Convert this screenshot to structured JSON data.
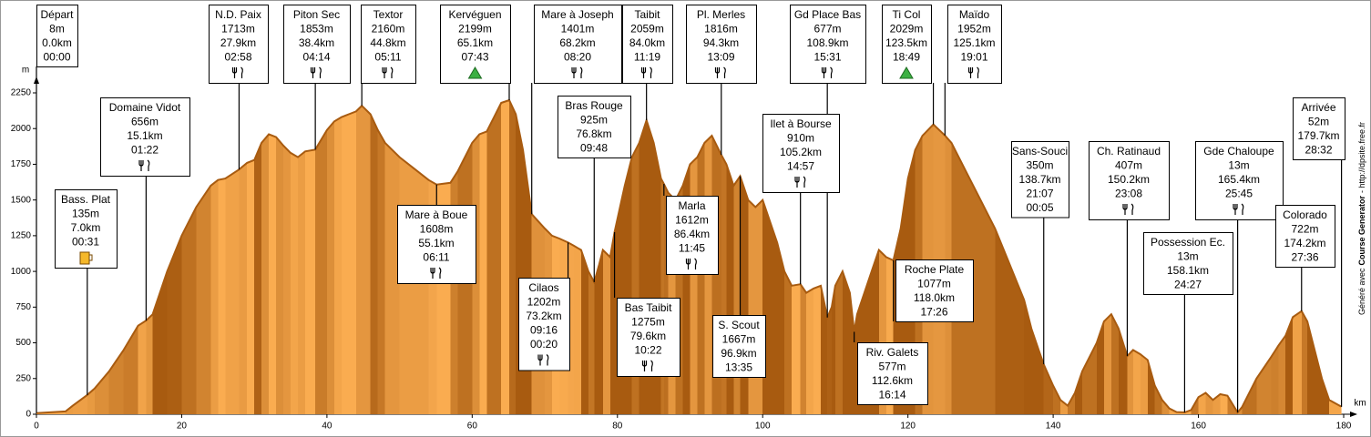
{
  "chart_data": {
    "type": "area",
    "ylabel": "m",
    "xlabel": "km",
    "credit": [
      "Généré avec",
      "Course Generator",
      "- http://dpsite.free.fr"
    ],
    "xlim": [
      0,
      180
    ],
    "xticks": [
      0,
      20,
      40,
      60,
      80,
      100,
      120,
      140,
      160,
      180
    ],
    "ylim": [
      0,
      2250
    ],
    "yticks": [
      0,
      250,
      500,
      750,
      1000,
      1250,
      1500,
      1750,
      2000,
      2250
    ],
    "color": "#a85b10",
    "x": [
      0,
      4,
      5,
      7,
      8,
      10,
      12,
      14,
      15.1,
      16,
      18,
      20,
      22,
      24,
      25,
      26,
      27.9,
      29,
      30,
      31,
      32,
      33,
      34,
      35,
      36,
      37,
      38.4,
      40,
      41,
      42,
      43,
      44,
      44.8,
      46,
      47,
      48,
      50,
      52,
      54,
      55.1,
      57,
      58,
      60,
      61,
      62,
      63,
      64,
      65.1,
      66,
      67,
      68.2,
      70,
      71,
      72,
      73.2,
      74,
      75,
      76,
      76.8,
      77.5,
      78,
      79,
      79.6,
      81,
      82,
      83,
      84,
      85,
      86,
      86.4,
      87,
      88,
      89,
      90,
      91,
      92,
      93,
      94.3,
      95,
      96,
      96.9,
      98,
      99,
      100,
      101,
      102,
      103,
      104,
      105.2,
      106,
      107,
      108,
      108.9,
      109.5,
      110,
      111,
      112,
      112.6,
      113,
      115,
      116,
      117,
      118,
      119,
      120,
      121,
      122,
      123.5,
      125.1,
      126,
      128,
      130,
      132,
      134,
      136,
      137,
      138,
      138.7,
      140,
      141,
      142,
      143,
      144,
      146,
      147,
      148,
      149,
      150.2,
      151,
      152,
      153,
      154,
      155,
      156,
      157,
      158.1,
      159,
      160,
      161,
      162,
      163,
      164,
      165.4,
      166,
      168,
      170,
      171,
      172,
      173,
      174.2,
      175,
      176,
      177,
      178,
      179.7
    ],
    "series": [
      {
        "name": "profile",
        "values": [
          8,
          20,
          60,
          135,
          180,
          300,
          450,
          620,
          656,
          700,
          1000,
          1250,
          1450,
          1600,
          1640,
          1650,
          1713,
          1760,
          1780,
          1900,
          1960,
          1940,
          1880,
          1830,
          1800,
          1840,
          1853,
          1990,
          2050,
          2080,
          2100,
          2120,
          2160,
          2100,
          1990,
          1900,
          1800,
          1720,
          1640,
          1608,
          1620,
          1700,
          1900,
          1960,
          1980,
          2080,
          2180,
          2199,
          2100,
          1850,
          1401,
          1300,
          1250,
          1230,
          1202,
          1180,
          1150,
          1000,
          925,
          1050,
          1150,
          1100,
          1275,
          1600,
          1800,
          1900,
          2059,
          1900,
          1650,
          1612,
          1550,
          1500,
          1600,
          1750,
          1800,
          1900,
          1950,
          1816,
          1750,
          1600,
          1667,
          1500,
          1450,
          1500,
          1350,
          1200,
          1000,
          900,
          910,
          850,
          880,
          900,
          677,
          750,
          900,
          1000,
          850,
          577,
          700,
          1000,
          1150,
          1100,
          1077,
          1300,
          1650,
          1850,
          1950,
          2029,
          1952,
          1900,
          1700,
          1500,
          1300,
          1050,
          800,
          600,
          450,
          350,
          200,
          100,
          60,
          150,
          300,
          500,
          650,
          700,
          600,
          407,
          450,
          420,
          380,
          200,
          100,
          40,
          15,
          13,
          30,
          120,
          150,
          100,
          140,
          130,
          13,
          50,
          250,
          400,
          480,
          550,
          680,
          722,
          650,
          450,
          250,
          100,
          52
        ]
      }
    ],
    "waypoints": [
      {
        "name": "Départ",
        "x": 0.0,
        "elevation": 8,
        "elevation_label": "8m",
        "distance_label": "0.0km",
        "times": [
          "00:00"
        ]
      },
      {
        "name": "Domaine Vidot",
        "x": 15.1,
        "elevation": 656,
        "elevation_label": "656m",
        "distance_label": "15.1km",
        "times": [
          "01:22"
        ]
      },
      {
        "name": "Bass. Plat",
        "x": 7.0,
        "elevation": 135,
        "elevation_label": "135m",
        "distance_label": "7.0km",
        "times": [
          "00:31"
        ]
      },
      {
        "name": "N.D. Paix",
        "x": 27.9,
        "elevation": 1713,
        "elevation_label": "1713m",
        "distance_label": "27.9km",
        "times": [
          "02:58"
        ]
      },
      {
        "name": "Piton Sec",
        "x": 38.4,
        "elevation": 1853,
        "elevation_label": "1853m",
        "distance_label": "38.4km",
        "times": [
          "04:14"
        ]
      },
      {
        "name": "Textor",
        "x": 44.8,
        "elevation": 2160,
        "elevation_label": "2160m",
        "distance_label": "44.8km",
        "times": [
          "05:11"
        ]
      },
      {
        "name": "Kervéguen",
        "x": 65.1,
        "elevation": 2199,
        "elevation_label": "2199m",
        "distance_label": "65.1km",
        "times": [
          "07:43"
        ]
      },
      {
        "name": "Mare à Boue",
        "x": 55.1,
        "elevation": 1608,
        "elevation_label": "1608m",
        "distance_label": "55.1km",
        "times": [
          "06:11"
        ]
      },
      {
        "name": "Mare à Joseph",
        "x": 68.2,
        "elevation": 1401,
        "elevation_label": "1401m",
        "distance_label": "68.2km",
        "times": [
          "08:20"
        ]
      },
      {
        "name": "Taibit",
        "x": 84.0,
        "elevation": 2059,
        "elevation_label": "2059m",
        "distance_label": "84.0km",
        "times": [
          "11:19"
        ]
      },
      {
        "name": "Bras Rouge",
        "x": 76.8,
        "elevation": 925,
        "elevation_label": "925m",
        "distance_label": "76.8km",
        "times": [
          "09:48"
        ]
      },
      {
        "name": "Cilaos",
        "x": 73.2,
        "elevation": 1202,
        "elevation_label": "1202m",
        "distance_label": "73.2km",
        "times": [
          "09:16",
          "00:20"
        ]
      },
      {
        "name": "Bas Taibit",
        "x": 79.6,
        "elevation": 1275,
        "elevation_label": "1275m",
        "distance_label": "79.6km",
        "times": [
          "10:22"
        ]
      },
      {
        "name": "Pl. Merles",
        "x": 94.3,
        "elevation": 1816,
        "elevation_label": "1816m",
        "distance_label": "94.3km",
        "times": [
          "13:09"
        ]
      },
      {
        "name": "Marla",
        "x": 86.4,
        "elevation": 1612,
        "elevation_label": "1612m",
        "distance_label": "86.4km",
        "times": [
          "11:45"
        ]
      },
      {
        "name": "S. Scout",
        "x": 96.9,
        "elevation": 1667,
        "elevation_label": "1667m",
        "distance_label": "96.9km",
        "times": [
          "13:35"
        ]
      },
      {
        "name": "Gd Place Bas",
        "x": 108.9,
        "elevation": 677,
        "elevation_label": "677m",
        "distance_label": "108.9km",
        "times": [
          "15:31"
        ]
      },
      {
        "name": "Ilet à Bourse",
        "x": 105.2,
        "elevation": 910,
        "elevation_label": "910m",
        "distance_label": "105.2km",
        "times": [
          "14:57"
        ]
      },
      {
        "name": "Riv. Galets",
        "x": 112.6,
        "elevation": 577,
        "elevation_label": "577m",
        "distance_label": "112.6km",
        "times": [
          "16:14"
        ]
      },
      {
        "name": "Ti Col",
        "x": 123.5,
        "elevation": 2029,
        "elevation_label": "2029m",
        "distance_label": "123.5km",
        "times": [
          "18:49"
        ]
      },
      {
        "name": "Maïdo",
        "x": 125.1,
        "elevation": 1952,
        "elevation_label": "1952m",
        "distance_label": "125.1km",
        "times": [
          "19:01"
        ]
      },
      {
        "name": "Roche Plate",
        "x": 118.0,
        "elevation": 1077,
        "elevation_label": "1077m",
        "distance_label": "118.0km",
        "times": [
          "17:26"
        ]
      },
      {
        "name": "Sans-Souci",
        "x": 138.7,
        "elevation": 350,
        "elevation_label": "350m",
        "distance_label": "138.7km",
        "times": [
          "21:07",
          "00:05"
        ]
      },
      {
        "name": "Ch. Ratinaud",
        "x": 150.2,
        "elevation": 407,
        "elevation_label": "407m",
        "distance_label": "150.2km",
        "times": [
          "23:08"
        ]
      },
      {
        "name": "Possession Ec.",
        "x": 158.1,
        "elevation": 13,
        "elevation_label": "13m",
        "distance_label": "158.1km",
        "times": [
          "24:27"
        ]
      },
      {
        "name": "Gde Chaloupe",
        "x": 165.4,
        "elevation": 13,
        "elevation_label": "13m",
        "distance_label": "165.4km",
        "times": [
          "25:45"
        ]
      },
      {
        "name": "Arrivée",
        "x": 179.7,
        "elevation": 52,
        "elevation_label": "52m",
        "distance_label": "179.7km",
        "times": [
          "28:32"
        ]
      },
      {
        "name": "Colorado",
        "x": 174.2,
        "elevation": 722,
        "elevation_label": "722m",
        "distance_label": "174.2km",
        "times": [
          "27:36"
        ]
      }
    ]
  }
}
